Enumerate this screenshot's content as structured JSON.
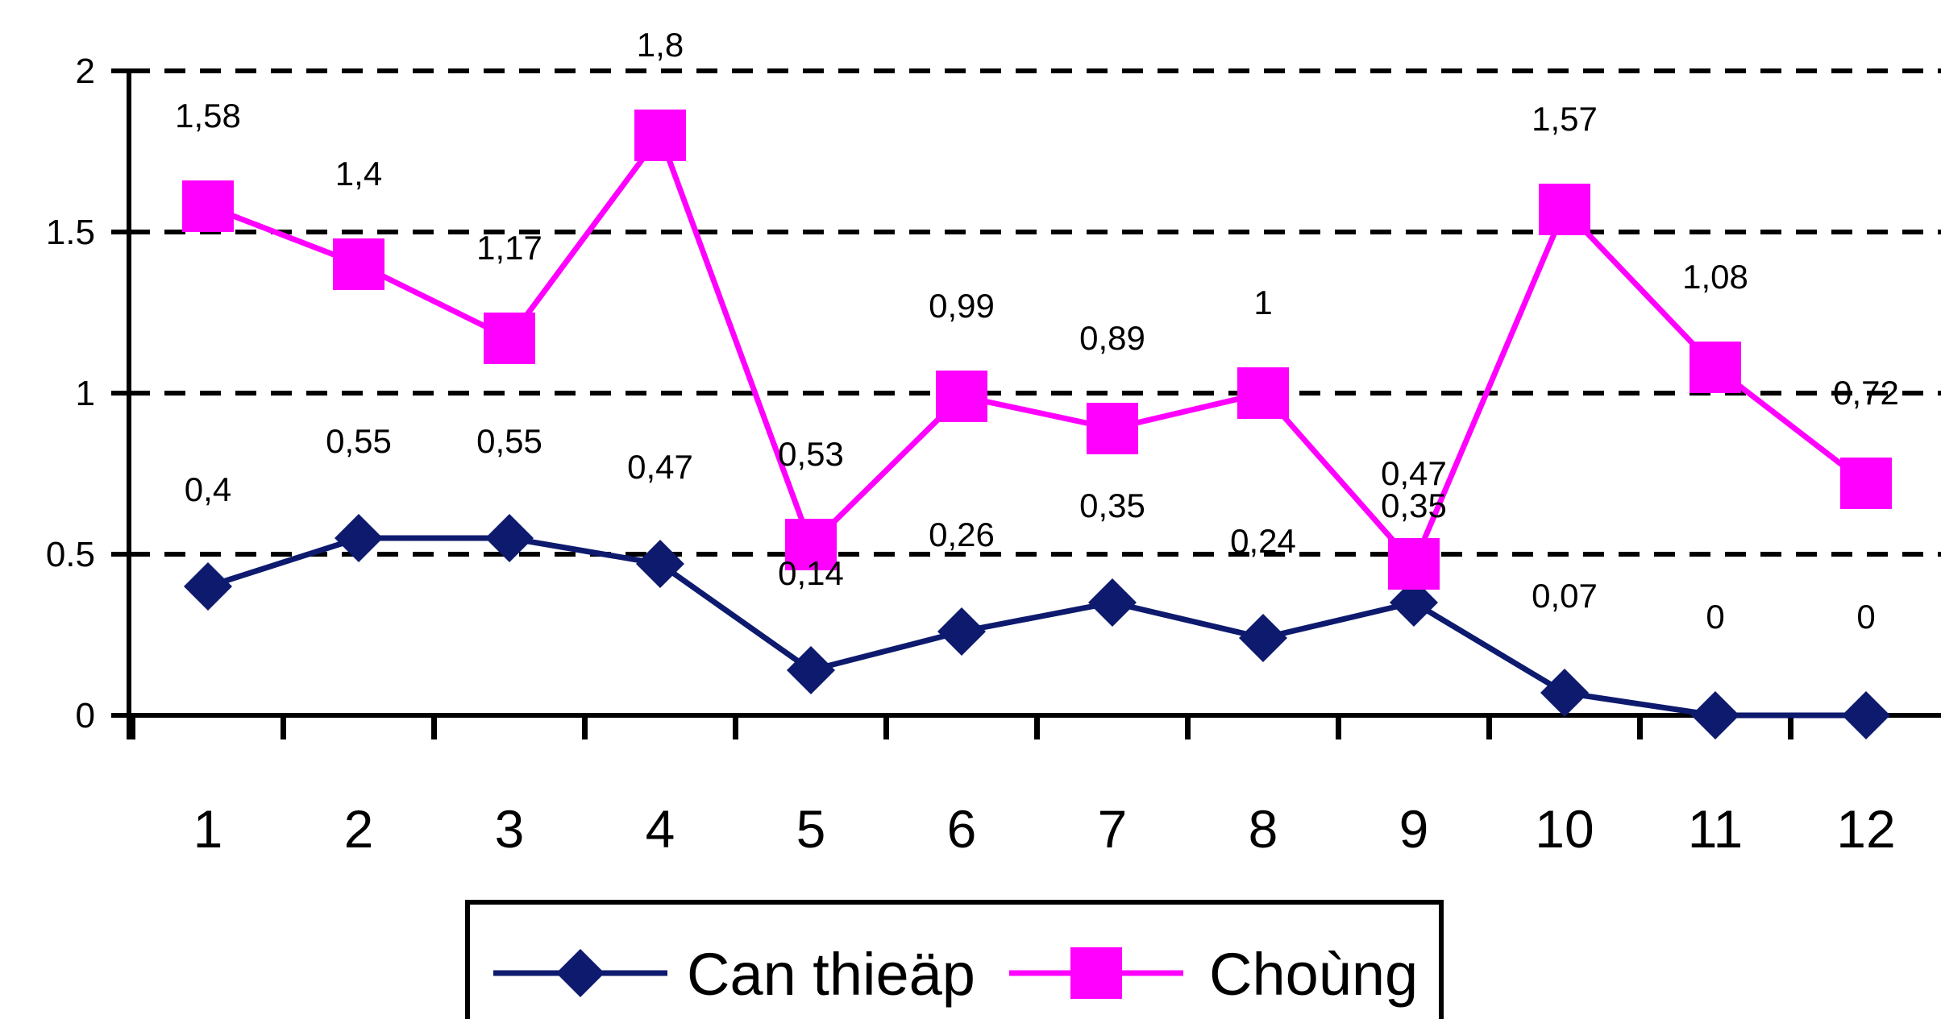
{
  "chart_data": {
    "type": "line",
    "x": [
      "1",
      "2",
      "3",
      "4",
      "5",
      "6",
      "7",
      "8",
      "9",
      "10",
      "11",
      "12"
    ],
    "ylim": [
      0,
      2
    ],
    "yticks": [
      "0",
      "0.5",
      "1",
      "1.5",
      "2"
    ],
    "grid": "horizontal dashed",
    "legend_position": "bottom",
    "series": [
      {
        "name": "Can thieäp",
        "color": "#0d1a6e",
        "marker": "diamond",
        "values": [
          0.4,
          0.55,
          0.55,
          0.47,
          0.14,
          0.26,
          0.35,
          0.24,
          0.35,
          0.07,
          0,
          0
        ],
        "labels": [
          "0,4",
          "0,55",
          "0,55",
          "0,47",
          "0,14",
          "0,26",
          "0,35",
          "0,24",
          "0,35",
          "0,07",
          "0",
          "0"
        ]
      },
      {
        "name": "Choùng",
        "color": "#ff00ff",
        "marker": "square",
        "values": [
          1.58,
          1.4,
          1.17,
          1.8,
          0.53,
          0.99,
          0.89,
          1,
          0.47,
          1.57,
          1.08,
          0.72
        ],
        "labels": [
          "1,58",
          "1,4",
          "1,17",
          "1,8",
          "0,53",
          "0,99",
          "0,89",
          "1",
          "0,47",
          "1,57",
          "1,08",
          "0,72"
        ]
      }
    ]
  }
}
